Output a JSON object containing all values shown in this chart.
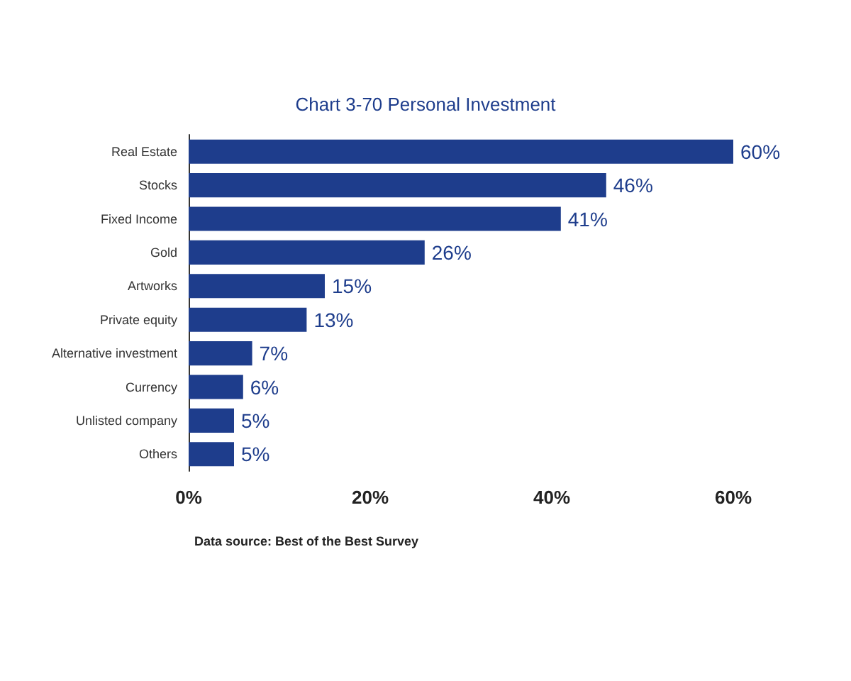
{
  "chart_data": {
    "type": "bar",
    "orientation": "horizontal",
    "title": "Chart 3-70 Personal Investment",
    "categories": [
      "Real Estate",
      "Stocks",
      "Fixed Income",
      "Gold",
      "Artworks",
      "Private equity",
      "Alternative investment",
      "Currency",
      "Unlisted company",
      "Others"
    ],
    "values": [
      60,
      46,
      41,
      26,
      15,
      13,
      7,
      6,
      5,
      5
    ],
    "value_labels": [
      "60%",
      "46%",
      "41%",
      "26%",
      "15%",
      "13%",
      "7%",
      "6%",
      "5%",
      "5%"
    ],
    "color": "#1e3d8c",
    "xlim": [
      0,
      60
    ],
    "xticks": [
      {
        "value": 0,
        "label": "0%"
      },
      {
        "value": 20,
        "label": "20%"
      },
      {
        "value": 40,
        "label": "40%"
      },
      {
        "value": 60,
        "label": "60%"
      }
    ],
    "annotations": [
      "Data source: Best of the Best Survey"
    ]
  }
}
